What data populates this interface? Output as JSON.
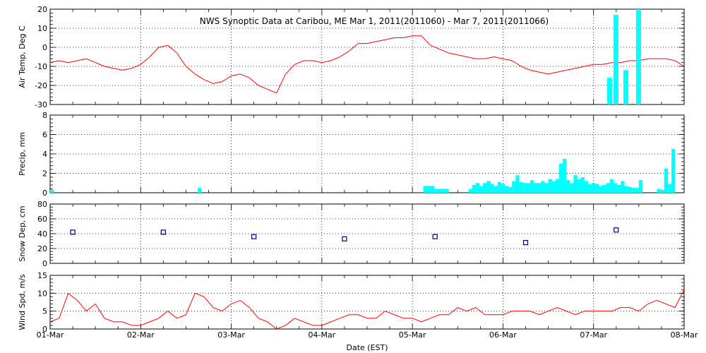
{
  "title": "NWS Synoptic Data at Caribou, ME   Mar  1, 2011(2011060) - Mar  7, 2011(2011066)",
  "xlabel": "Date (EST)",
  "x_ticks": [
    "01-Mar",
    "02-Mar",
    "03-Mar",
    "04-Mar",
    "05-Mar",
    "06-Mar",
    "07-Mar",
    "08-Mar"
  ],
  "colors": {
    "temp": "#ff0000",
    "precip": "#00ffff",
    "snow": "#000080",
    "wind": "#ff0000"
  },
  "chart_data": [
    {
      "type": "line",
      "ylabel": "Air Temp, Deg C",
      "ylim": [
        -30,
        20
      ],
      "yticks": [
        "-30",
        "-20",
        "-10",
        "0",
        "10",
        "20"
      ],
      "x_unit": "days since 01-Mar 00:00 EST",
      "grid": true,
      "series": [
        {
          "x": [
            0,
            0.1,
            0.2,
            0.3,
            0.4,
            0.5,
            0.6,
            0.7,
            0.8,
            0.9,
            1.0,
            1.1,
            1.2,
            1.3,
            1.4,
            1.5,
            1.6,
            1.7,
            1.8,
            1.9,
            2.0,
            2.1,
            2.2,
            2.3,
            2.4,
            2.5,
            2.6,
            2.7,
            2.8,
            2.9,
            3.0,
            3.1,
            3.2,
            3.3,
            3.4,
            3.5,
            3.6,
            3.7,
            3.8,
            3.9,
            4.0,
            4.1,
            4.2,
            4.3,
            4.4,
            4.5,
            4.6,
            4.7,
            4.8,
            4.9,
            5.0,
            5.1,
            5.2,
            5.3,
            5.4,
            5.5,
            5.6,
            5.7,
            5.8,
            5.9,
            6.0,
            6.1,
            6.2,
            6.3,
            6.4,
            6.5,
            6.6,
            6.7,
            6.8,
            6.9,
            7.0
          ],
          "y": [
            -8,
            -7,
            -8,
            -7,
            -6,
            -8,
            -10,
            -11,
            -12,
            -11,
            -9,
            -5,
            0,
            1,
            -3,
            -10,
            -14,
            -17,
            -19,
            -18,
            -15,
            -14,
            -16,
            -20,
            -22,
            -24,
            -14,
            -9,
            -7,
            -7,
            -8,
            -7,
            -5,
            -2,
            2,
            2,
            3,
            4,
            5,
            5,
            6,
            6,
            1,
            -1,
            -3,
            -4,
            -5,
            -6,
            -6,
            -5,
            -6,
            -7,
            -10,
            -12,
            -13,
            -14,
            -13,
            -12,
            -11,
            -10,
            -9,
            -9,
            -8,
            -8,
            -7,
            -7,
            -6,
            -6,
            -6,
            -7,
            -10
          ]
        }
      ]
    },
    {
      "type": "bar",
      "ylabel": "Precip, mm",
      "ylim": [
        0,
        8
      ],
      "yticks": [
        "0",
        "2",
        "4",
        "6",
        "8"
      ],
      "x_unit": "days since 01-Mar 00:00 EST",
      "bin_width_days": 0.04167,
      "grid": true,
      "x": [
        0.0,
        1.63,
        4.12,
        4.16,
        4.2,
        4.24,
        4.28,
        4.32,
        4.36,
        4.62,
        4.66,
        4.7,
        4.74,
        4.78,
        4.82,
        4.86,
        4.9,
        4.94,
        4.98,
        5.02,
        5.06,
        5.1,
        5.14,
        5.18,
        5.22,
        5.26,
        5.3,
        5.34,
        5.38,
        5.42,
        5.46,
        5.5,
        5.54,
        5.58,
        5.62,
        5.66,
        5.7,
        5.74,
        5.78,
        5.82,
        5.86,
        5.9,
        5.94,
        5.98,
        6.02,
        6.06,
        6.1,
        6.14,
        6.18,
        6.22,
        6.26,
        6.3,
        6.34,
        6.38,
        6.42,
        6.46,
        6.5,
        6.7,
        6.74,
        6.78,
        6.82,
        6.86
      ],
      "values": [
        0.3,
        0.5,
        0.7,
        0.7,
        0.7,
        0.4,
        0.4,
        0.4,
        0.4,
        0.4,
        0.8,
        1.0,
        0.7,
        1.0,
        1.2,
        0.9,
        0.7,
        1.1,
        0.9,
        0.7,
        0.6,
        1.2,
        1.8,
        1.1,
        1.0,
        1.0,
        1.3,
        1.0,
        1.0,
        1.2,
        1.0,
        1.4,
        1.2,
        1.4,
        3.0,
        3.5,
        1.3,
        1.0,
        1.8,
        1.4,
        1.6,
        1.2,
        0.9,
        1.0,
        0.9,
        0.7,
        0.8,
        1.0,
        1.4,
        1.0,
        0.8,
        1.2,
        0.7,
        0.6,
        0.5,
        0.5,
        1.3,
        0.4,
        0.3,
        2.5,
        0.9,
        4.5
      ]
    },
    {
      "type": "scatter",
      "ylabel": "Snow Dep, cm",
      "ylim": [
        0,
        80
      ],
      "yticks": [
        "0",
        "20",
        "40",
        "60",
        "80"
      ],
      "x_unit": "days since 01-Mar 00:00 EST",
      "grid": true,
      "x": [
        0.25,
        1.25,
        2.25,
        3.25,
        4.25,
        5.25,
        6.25
      ],
      "values": [
        42,
        42,
        36,
        33,
        36,
        28,
        45
      ]
    },
    {
      "type": "line",
      "ylabel": "Wind Spd, m/s",
      "ylim": [
        0,
        15
      ],
      "yticks": [
        "0",
        "5",
        "10",
        "15"
      ],
      "x_unit": "days since 01-Mar 00:00 EST",
      "grid": true,
      "series": [
        {
          "x": [
            0,
            0.1,
            0.2,
            0.3,
            0.4,
            0.5,
            0.6,
            0.7,
            0.8,
            0.9,
            1.0,
            1.1,
            1.2,
            1.3,
            1.4,
            1.5,
            1.6,
            1.7,
            1.8,
            1.9,
            2.0,
            2.1,
            2.2,
            2.3,
            2.4,
            2.5,
            2.6,
            2.7,
            2.8,
            2.9,
            3.0,
            3.1,
            3.2,
            3.3,
            3.4,
            3.5,
            3.6,
            3.7,
            3.8,
            3.9,
            4.0,
            4.1,
            4.2,
            4.3,
            4.4,
            4.5,
            4.6,
            4.7,
            4.8,
            4.9,
            5.0,
            5.1,
            5.2,
            5.3,
            5.4,
            5.5,
            5.6,
            5.7,
            5.8,
            5.9,
            6.0,
            6.1,
            6.2,
            6.3,
            6.4,
            6.5,
            6.6,
            6.7,
            6.8,
            6.9,
            7.0
          ],
          "y": [
            2,
            3,
            10,
            8,
            5,
            7,
            3,
            2,
            2,
            1,
            1,
            2,
            3,
            5,
            3,
            4,
            10,
            9,
            6,
            5,
            7,
            8,
            6,
            3,
            2,
            0,
            1,
            3,
            2,
            1,
            1,
            2,
            3,
            4,
            4,
            3,
            3,
            5,
            4,
            3,
            3,
            2,
            3,
            4,
            4,
            6,
            5,
            6,
            4,
            4,
            4,
            5,
            5,
            5,
            4,
            5,
            6,
            5,
            4,
            5,
            5,
            5,
            5,
            6,
            6,
            5,
            7,
            8,
            7,
            6,
            11
          ]
        }
      ]
    }
  ]
}
